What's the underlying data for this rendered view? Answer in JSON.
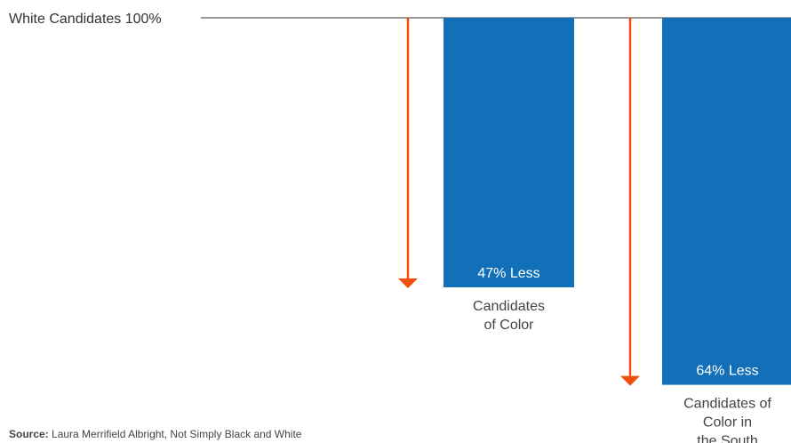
{
  "chart_data": {
    "type": "bar",
    "baseline_label": "White Candidates 100%",
    "categories": [
      [
        "Candidates",
        "of Color"
      ],
      [
        "Candidates of",
        "Color in",
        "the South"
      ]
    ],
    "values": [
      -47,
      -64
    ],
    "value_labels": [
      "47% Less",
      "64% Less"
    ],
    "ylim": [
      -70,
      0
    ],
    "colors": {
      "bar": "#1170b8",
      "arrow": "#f0500f",
      "baseline": "#999999"
    }
  },
  "source": {
    "label": "Source:",
    "text": "Laura Merrifield Albright, Not Simply Black and White"
  }
}
